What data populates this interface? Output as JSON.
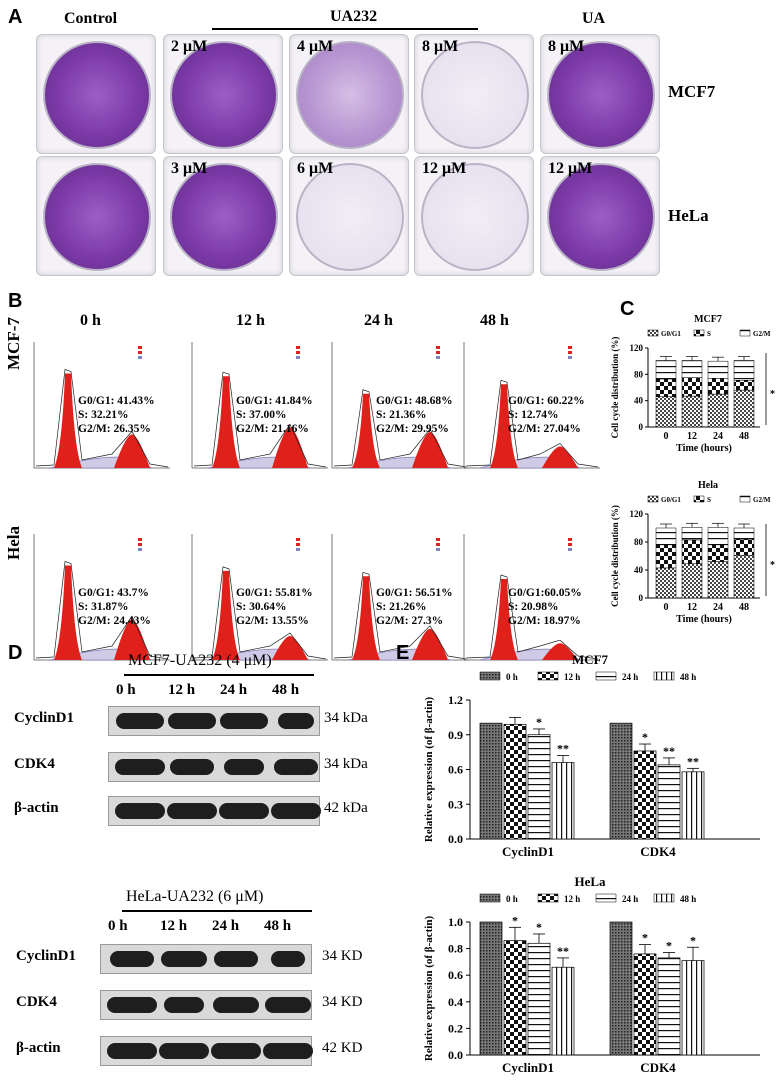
{
  "panel_labels": {
    "a": "A",
    "b": "B",
    "c": "C",
    "d": "D",
    "e": "E"
  },
  "panelA": {
    "header_control": "Control",
    "header_ua232": "UA232",
    "header_ua": "UA",
    "row_mcf7": "MCF7",
    "row_hela": "HeLa",
    "mcf7_conc": [
      "2 μM",
      "4 μM",
      "8 μM",
      "8 μM"
    ],
    "hela_conc": [
      "3 μM",
      "6 μM",
      "12 μM",
      "12 μM"
    ]
  },
  "panelB": {
    "times": [
      "0 h",
      "12 h",
      "24 h",
      "48 h"
    ],
    "row_mcf7": "MCF-7",
    "row_hela": "Hela",
    "mcf7_stats": [
      [
        "G0/G1: 41.43%",
        "S: 32.21%",
        "G2/M: 26.35%"
      ],
      [
        "G0/G1: 41.84%",
        "S: 37.00%",
        "G2/M: 21.16%"
      ],
      [
        "G0/G1: 48.68%",
        "S: 21.36%",
        "G2/M: 29.95%"
      ],
      [
        "G0/G1: 60.22%",
        "S: 12.74%",
        "G2/M: 27.04%"
      ]
    ],
    "hela_stats": [
      [
        "G0/G1: 43.7%",
        "S: 31.87%",
        "G2/M: 24.43%"
      ],
      [
        "G0/G1: 55.81%",
        "S: 30.64%",
        "G2/M: 13.55%"
      ],
      [
        "G0/G1: 56.51%",
        "S: 21.26%",
        "G2/M: 27.3%"
      ],
      [
        "G0/G1:60.05%",
        "S: 20.98%",
        "G2/M: 18.97%"
      ]
    ]
  },
  "panelD": {
    "mcf7_title": "MCF7-UA232 (4 μM)",
    "hela_title": "HeLa-UA232 (6 μM)",
    "times": [
      "0 h",
      "12 h",
      "24 h",
      "48 h"
    ],
    "mcf7_rows": [
      {
        "label": "CyclinD1",
        "kd": "34 kDa"
      },
      {
        "label": "CDK4",
        "kd": "34 kDa"
      },
      {
        "label": "β-actin",
        "kd": "42 kDa"
      }
    ],
    "hela_rows": [
      {
        "label": "CyclinD1",
        "kd": "34 KD"
      },
      {
        "label": "CDK4",
        "kd": "34 KD"
      },
      {
        "label": "β-actin",
        "kd": "42 KD"
      }
    ]
  },
  "chart_data": [
    {
      "type": "bar",
      "stacked": true,
      "title": "MCF7",
      "xlabel": "Time (hours)",
      "ylabel": "Cell cycle distribution (%)",
      "categories": [
        "0",
        "12",
        "24",
        "48"
      ],
      "ylim": [
        0,
        120
      ],
      "yticks": [
        "0",
        "40",
        "80",
        "120"
      ],
      "series": [
        {
          "name": "G0/G1",
          "values": [
            46,
            47,
            50,
            56
          ]
        },
        {
          "name": "S",
          "values": [
            27,
            28,
            24,
            15
          ]
        },
        {
          "name": "G2/M",
          "values": [
            28,
            26,
            26,
            30
          ]
        }
      ],
      "annotation": "*"
    },
    {
      "type": "bar",
      "stacked": true,
      "title": "Hela",
      "xlabel": "Time (hours)",
      "ylabel": "Cell cycle distribution (%)",
      "categories": [
        "0",
        "12",
        "24",
        "48"
      ],
      "ylim": [
        0,
        120
      ],
      "yticks": [
        "0",
        "40",
        "80",
        "120"
      ],
      "series": [
        {
          "name": "G0/G1",
          "values": [
            43,
            49,
            52,
            61
          ]
        },
        {
          "name": "S",
          "values": [
            33,
            34,
            24,
            23
          ]
        },
        {
          "name": "G2/M",
          "values": [
            24,
            18,
            25,
            16
          ]
        }
      ],
      "annotation": "*"
    },
    {
      "type": "bar",
      "title": "MCF7",
      "xlabel": "",
      "ylabel": "Relative expression (of β-actin)",
      "categories": [
        "CyclinD1",
        "CDK4"
      ],
      "ylim": [
        0,
        1.2
      ],
      "yticks": [
        "0.0",
        "0.3",
        "0.6",
        "0.9",
        "1.2"
      ],
      "series": [
        {
          "name": "0 h",
          "values": [
            1.0,
            1.0
          ],
          "errors": [
            0,
            0
          ],
          "sig": [
            "",
            ""
          ]
        },
        {
          "name": "12 h",
          "values": [
            0.99,
            0.76
          ],
          "errors": [
            0.06,
            0.06
          ],
          "sig": [
            "",
            "*"
          ]
        },
        {
          "name": "24 h",
          "values": [
            0.9,
            0.64
          ],
          "errors": [
            0.05,
            0.06
          ],
          "sig": [
            "*",
            "**"
          ]
        },
        {
          "name": "48 h",
          "values": [
            0.66,
            0.58
          ],
          "errors": [
            0.06,
            0.03
          ],
          "sig": [
            "**",
            "**"
          ]
        }
      ]
    },
    {
      "type": "bar",
      "title": "HeLa",
      "xlabel": "",
      "ylabel": "Relative expression (of β-actin)",
      "categories": [
        "CyclinD1",
        "CDK4"
      ],
      "ylim": [
        0,
        1.0
      ],
      "yticks": [
        "0.0",
        "0.2",
        "0.4",
        "0.6",
        "0.8",
        "1.0"
      ],
      "series": [
        {
          "name": "0 h",
          "values": [
            1.0,
            1.0
          ],
          "errors": [
            0,
            0
          ],
          "sig": [
            "",
            ""
          ]
        },
        {
          "name": "12 h",
          "values": [
            0.86,
            0.76
          ],
          "errors": [
            0.1,
            0.07
          ],
          "sig": [
            "*",
            "*"
          ]
        },
        {
          "name": "24 h",
          "values": [
            0.84,
            0.73
          ],
          "errors": [
            0.07,
            0.04
          ],
          "sig": [
            "*",
            "*"
          ]
        },
        {
          "name": "48 h",
          "values": [
            0.66,
            0.71
          ],
          "errors": [
            0.07,
            0.1
          ],
          "sig": [
            "**",
            "*"
          ]
        }
      ]
    }
  ]
}
